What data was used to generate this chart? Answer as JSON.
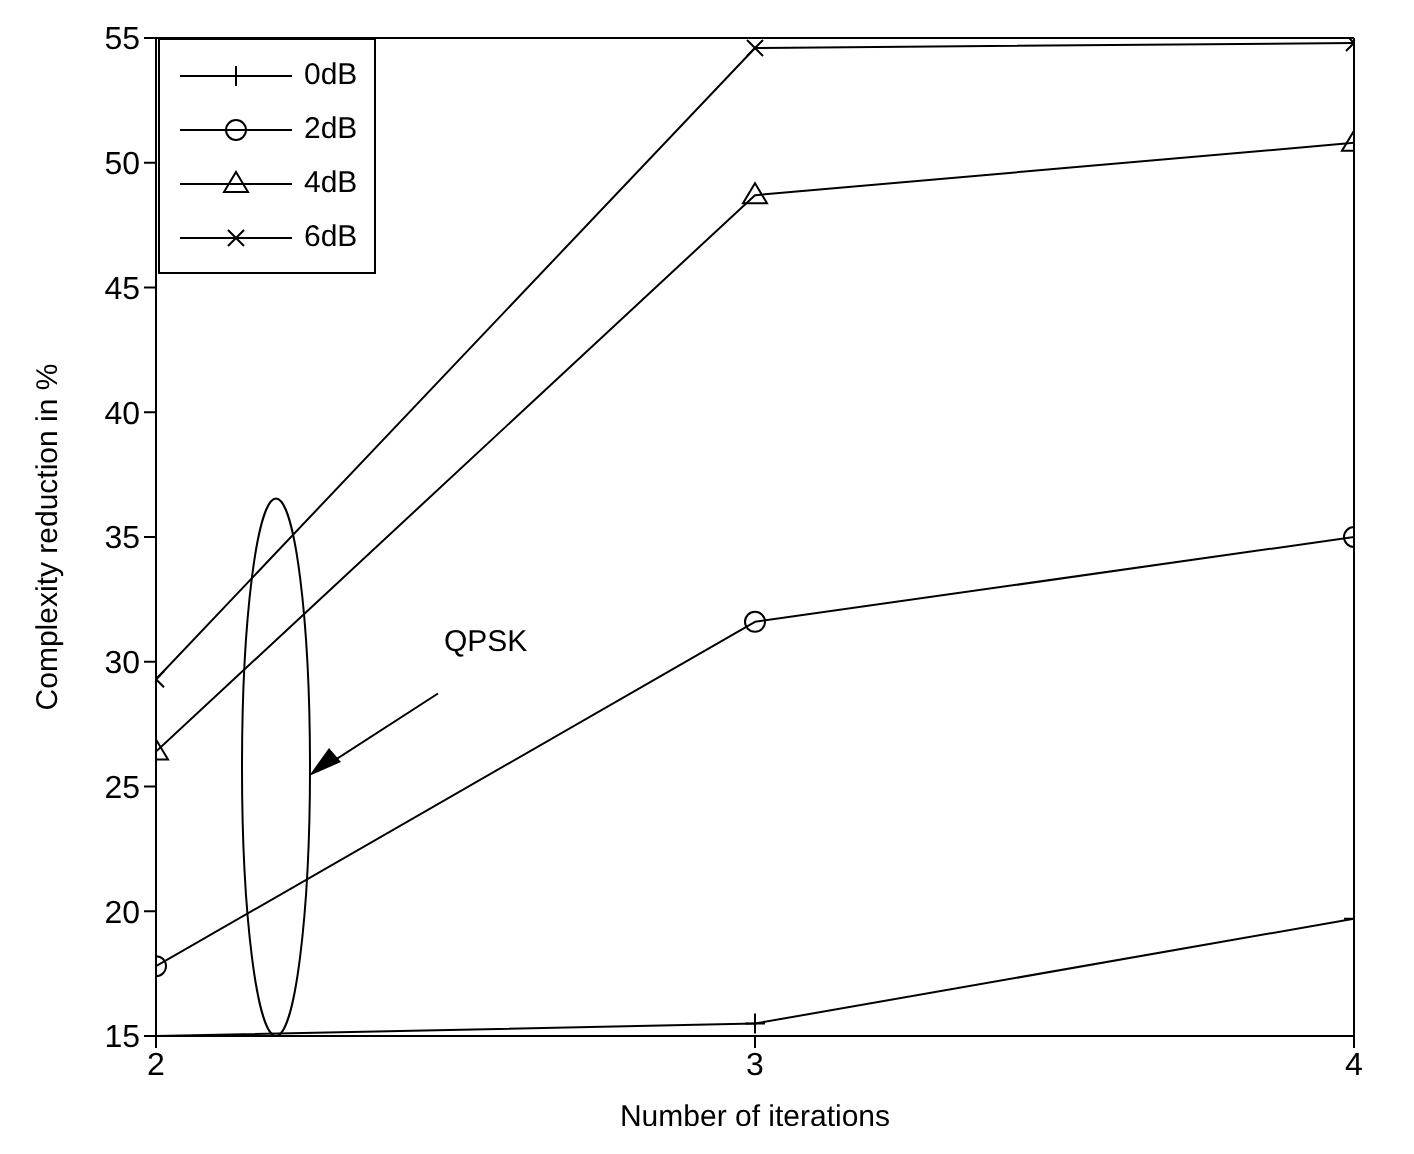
{
  "chart_data": {
    "type": "line",
    "xlabel": "Number of iterations",
    "ylabel": "Complexity reduction in %",
    "x": [
      2,
      3,
      4
    ],
    "series": [
      {
        "name": "0dB",
        "color": "#000000",
        "marker": "plus",
        "values": [
          15.0,
          15.5,
          19.7
        ]
      },
      {
        "name": "2dB",
        "color": "#000000",
        "marker": "circle",
        "values": [
          17.8,
          31.6,
          35.0
        ]
      },
      {
        "name": "4dB",
        "color": "#000000",
        "marker": "triangle",
        "values": [
          26.4,
          48.7,
          50.8
        ]
      },
      {
        "name": "6dB",
        "color": "#000000",
        "marker": "cross",
        "values": [
          29.3,
          54.6,
          54.8
        ]
      }
    ],
    "xlim": [
      2,
      4
    ],
    "xticks": [
      2,
      3,
      4
    ],
    "ylim": [
      15,
      55
    ],
    "yticks": [
      15,
      20,
      25,
      30,
      35,
      40,
      45,
      50,
      55
    ],
    "grid": false,
    "legend": "top left",
    "line_style": "solid",
    "annotations": [
      "QPSK"
    ]
  }
}
